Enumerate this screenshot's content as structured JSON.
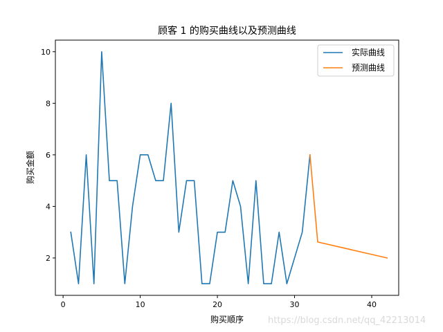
{
  "chart_data": {
    "type": "line",
    "title": "顾客 1 的购买曲线以及预测曲线",
    "xlabel": "购买顺序",
    "ylabel": "购买金额",
    "xlim": [
      -1,
      43.5
    ],
    "ylim": [
      0.55,
      10.45
    ],
    "xticks": [
      0,
      10,
      20,
      30,
      40
    ],
    "yticks": [
      2,
      4,
      6,
      8,
      10
    ],
    "grid": false,
    "legend_position": "top-right",
    "series": [
      {
        "name": "实际曲线",
        "color": "#1f77b4",
        "x": [
          1,
          2,
          3,
          4,
          5,
          6,
          7,
          8,
          9,
          10,
          11,
          12,
          13,
          14,
          15,
          16,
          17,
          18,
          19,
          20,
          21,
          22,
          23,
          24,
          25,
          26,
          27,
          28,
          29,
          30,
          31,
          32
        ],
        "y": [
          3,
          1,
          6,
          1,
          10,
          5,
          5,
          1,
          4,
          6,
          6,
          5,
          5,
          8,
          3,
          5,
          5,
          1,
          1,
          3,
          3,
          5,
          4,
          1,
          5,
          1,
          1,
          3,
          1,
          2,
          3,
          6
        ]
      },
      {
        "name": "预测曲线",
        "color": "#ff7f0e",
        "x": [
          32,
          33,
          42
        ],
        "y": [
          6,
          2.62,
          2.0
        ]
      }
    ]
  },
  "watermark": "https://blog.csdn.net/qq_42213014"
}
